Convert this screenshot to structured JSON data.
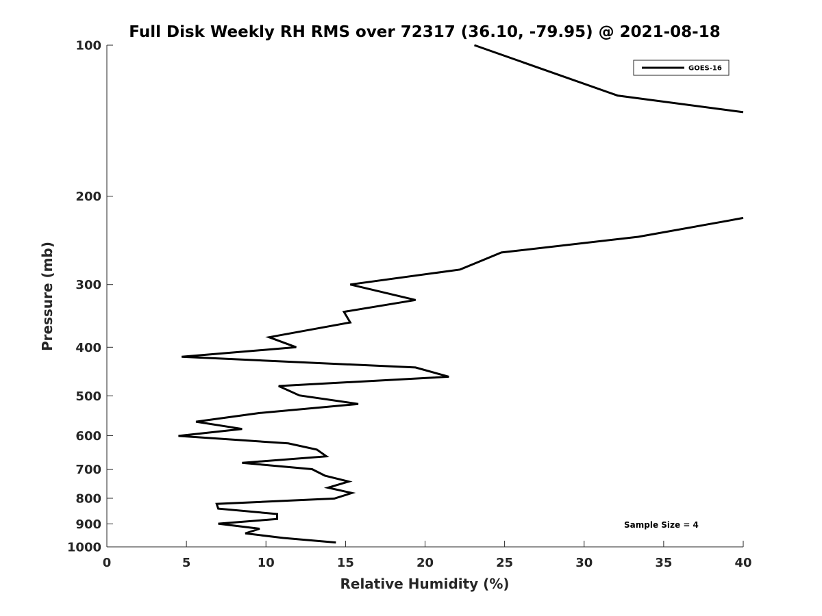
{
  "chart_data": {
    "type": "line",
    "title": "Full Disk Weekly RH RMS over 72317 (36.10, -79.95) @ 2021-08-18",
    "xlabel": "Relative Humidity (%)",
    "ylabel": "Pressure (mb)",
    "xlim": [
      0,
      40
    ],
    "ylim": [
      100,
      1000
    ],
    "y_scale": "log",
    "y_reversed": true,
    "xticks": [
      0,
      5,
      10,
      15,
      20,
      25,
      30,
      35,
      40
    ],
    "yticks": [
      100,
      200,
      300,
      400,
      500,
      600,
      700,
      800,
      900,
      1000
    ],
    "grid": false,
    "legend_position": "top-right",
    "annotation": "Sample Size = 4",
    "series": [
      {
        "name": "GOES-16",
        "color": "#000000",
        "points": [
          [
            23.1,
            100
          ],
          [
            32.1,
            126
          ],
          [
            40.0,
            136
          ],
          [
            null,
            175
          ],
          [
            40.0,
            221
          ],
          [
            39.0,
            224
          ],
          [
            33.4,
            241
          ],
          [
            24.8,
            259
          ],
          [
            22.2,
            280
          ],
          [
            15.3,
            300
          ],
          [
            19.4,
            322
          ],
          [
            14.9,
            340
          ],
          [
            15.3,
            357
          ],
          [
            10.2,
            382
          ],
          [
            11.9,
            400
          ],
          [
            4.7,
            418
          ],
          [
            19.4,
            439
          ],
          [
            21.5,
            458
          ],
          [
            10.8,
            478
          ],
          [
            12.1,
            499
          ],
          [
            15.8,
            519
          ],
          [
            9.6,
            541
          ],
          [
            5.6,
            563
          ],
          [
            8.5,
            582
          ],
          [
            4.5,
            601
          ],
          [
            11.4,
            622
          ],
          [
            13.2,
            640
          ],
          [
            13.8,
            660
          ],
          [
            8.5,
            680
          ],
          [
            12.9,
            700
          ],
          [
            13.7,
            721
          ],
          [
            15.2,
            741
          ],
          [
            13.9,
            762
          ],
          [
            15.4,
            781
          ],
          [
            14.3,
            801
          ],
          [
            6.9,
            821
          ],
          [
            7.0,
            839
          ],
          [
            10.7,
            860
          ],
          [
            10.7,
            880
          ],
          [
            7.0,
            899
          ],
          [
            9.6,
            920
          ],
          [
            8.7,
            940
          ],
          [
            11.1,
            960
          ],
          [
            14.4,
            980
          ]
        ]
      }
    ]
  }
}
